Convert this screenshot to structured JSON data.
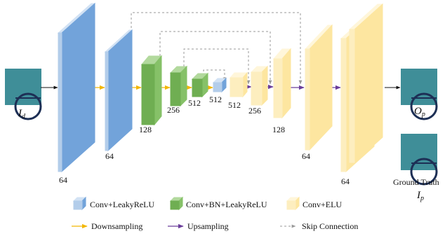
{
  "labels": {
    "input": {
      "symbol": "I",
      "subscript": "d"
    },
    "output": {
      "symbol": "O",
      "subscript": "p"
    },
    "ground_truth": {
      "title": "Ground Truth",
      "symbol": "I",
      "subscript": "p"
    }
  },
  "nodes": [
    {
      "label": "64"
    },
    {
      "label": "64"
    },
    {
      "label": "128"
    },
    {
      "label": "256"
    },
    {
      "label": "512"
    },
    {
      "label": "512"
    },
    {
      "label": "512"
    },
    {
      "label": "256"
    },
    {
      "label": "128"
    },
    {
      "label": "64"
    },
    {
      "label": "64"
    }
  ],
  "legend": {
    "blocks": [
      "Conv+LeakyReLU",
      "Conv+BN+LeakyReLU",
      "Conv+ELU"
    ],
    "connections": [
      "Downsampling",
      "Upsampling",
      "Skip Connection"
    ]
  }
}
